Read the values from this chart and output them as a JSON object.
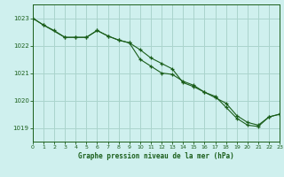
{
  "title": "Graphe pression niveau de la mer (hPa)",
  "background_color": "#cff0ee",
  "grid_color": "#aad4cc",
  "line_color": "#1a5e1a",
  "xlim": [
    0,
    23
  ],
  "ylim": [
    1018.5,
    1023.5
  ],
  "yticks": [
    1019,
    1020,
    1021,
    1022,
    1023
  ],
  "xticks": [
    0,
    1,
    2,
    3,
    4,
    5,
    6,
    7,
    8,
    9,
    10,
    11,
    12,
    13,
    14,
    15,
    16,
    17,
    18,
    19,
    20,
    21,
    22,
    23
  ],
  "series1_x": [
    0,
    1,
    2,
    3,
    4,
    5,
    6,
    7,
    8,
    9,
    10,
    11,
    12,
    13,
    14,
    15,
    16,
    17,
    18,
    19,
    20,
    21,
    22,
    23
  ],
  "series1_y": [
    1023.0,
    1022.75,
    1022.55,
    1022.3,
    1022.3,
    1022.3,
    1022.55,
    1022.35,
    1022.2,
    1022.1,
    1021.85,
    1021.55,
    1021.35,
    1021.15,
    1020.65,
    1020.5,
    1020.3,
    1020.1,
    1019.9,
    1019.45,
    1019.2,
    1019.1,
    1019.4,
    1019.5
  ],
  "series2_x": [
    0,
    1,
    3,
    4,
    5,
    6,
    7,
    8,
    9,
    10,
    11,
    12,
    13,
    14,
    15,
    16,
    17,
    18,
    19,
    20,
    21,
    22,
    23
  ],
  "series2_y": [
    1023.0,
    1022.75,
    1022.3,
    1022.3,
    1022.3,
    1022.55,
    1022.35,
    1022.2,
    1022.1,
    1021.5,
    1021.25,
    1021.0,
    1020.95,
    1020.7,
    1020.55,
    1020.3,
    1020.15,
    1019.75,
    1019.35,
    1019.1,
    1019.05,
    1019.4,
    1019.5
  ]
}
